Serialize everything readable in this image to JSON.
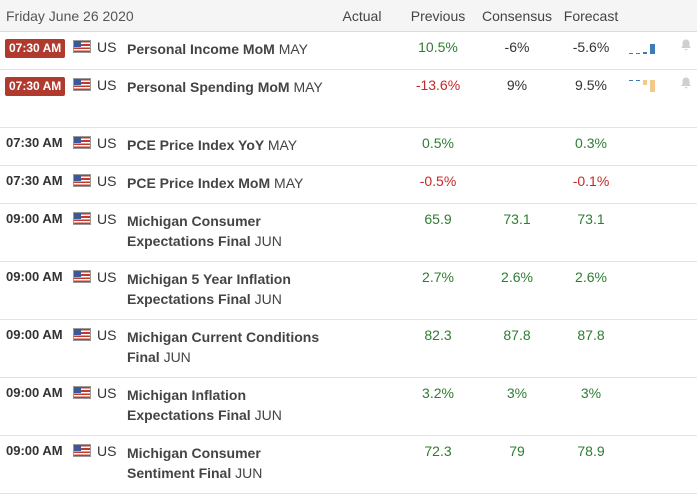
{
  "header": {
    "date": "Friday June 26 2020",
    "actual": "Actual",
    "previous": "Previous",
    "consensus": "Consensus",
    "forecast": "Forecast"
  },
  "colors": {
    "positive": "#2e7d32",
    "negative": "#c62828",
    "badge": "#b03a2e",
    "spark_blue": "#3d7ab8",
    "spark_tan": "#f3c98b"
  },
  "rows": [
    {
      "time": "07:30 AM",
      "highlight": true,
      "country": "US",
      "event": "Personal Income MoM",
      "period": "MAY",
      "previous": "10.5%",
      "previous_sign": "pos",
      "consensus": "-6%",
      "consensus_sign": "neutral",
      "forecast": "-5.6%",
      "forecast_sign": "neutral",
      "spark": true,
      "bell_icon": "bell-icon"
    },
    {
      "time": "07:30 AM",
      "highlight": true,
      "country": "US",
      "event": "Personal Spending MoM",
      "period": "MAY",
      "previous": "-13.6%",
      "previous_sign": "neg",
      "consensus": "9%",
      "consensus_sign": "neutral",
      "forecast": "9.5%",
      "forecast_sign": "neutral",
      "spark": true,
      "bell_icon": "bell-icon"
    },
    {
      "time": "07:30 AM",
      "highlight": false,
      "country": "US",
      "event": "PCE Price Index YoY",
      "period": "MAY",
      "previous": "0.5%",
      "previous_sign": "pos",
      "consensus": "",
      "forecast": "0.3%",
      "forecast_sign": "pos"
    },
    {
      "time": "07:30 AM",
      "highlight": false,
      "country": "US",
      "event": "PCE Price Index MoM",
      "period": "MAY",
      "previous": "-0.5%",
      "previous_sign": "neg",
      "consensus": "",
      "forecast": "-0.1%",
      "forecast_sign": "neg"
    },
    {
      "time": "09:00 AM",
      "highlight": false,
      "country": "US",
      "event": "Michigan Consumer Expectations Final",
      "period": "JUN",
      "previous": "65.9",
      "previous_sign": "pos",
      "consensus": "73.1",
      "consensus_sign": "pos",
      "forecast": "73.1",
      "forecast_sign": "pos"
    },
    {
      "time": "09:00 AM",
      "highlight": false,
      "country": "US",
      "event": "Michigan 5 Year Inflation Expectations Final",
      "period": "JUN",
      "previous": "2.7%",
      "previous_sign": "pos",
      "consensus": "2.6%",
      "consensus_sign": "pos",
      "forecast": "2.6%",
      "forecast_sign": "pos"
    },
    {
      "time": "09:00 AM",
      "highlight": false,
      "country": "US",
      "event": "Michigan Current Conditions Final",
      "period": "JUN",
      "previous": "82.3",
      "previous_sign": "pos",
      "consensus": "87.8",
      "consensus_sign": "pos",
      "forecast": "87.8",
      "forecast_sign": "pos"
    },
    {
      "time": "09:00 AM",
      "highlight": false,
      "country": "US",
      "event": "Michigan Inflation Expectations Final",
      "period": "JUN",
      "previous": "3.2%",
      "previous_sign": "pos",
      "consensus": "3%",
      "consensus_sign": "pos",
      "forecast": "3%",
      "forecast_sign": "pos"
    },
    {
      "time": "09:00 AM",
      "highlight": false,
      "country": "US",
      "event": "Michigan Consumer Sentiment Final",
      "period": "JUN",
      "previous": "72.3",
      "previous_sign": "pos",
      "consensus": "79",
      "consensus_sign": "pos",
      "forecast": "78.9",
      "forecast_sign": "pos"
    }
  ]
}
